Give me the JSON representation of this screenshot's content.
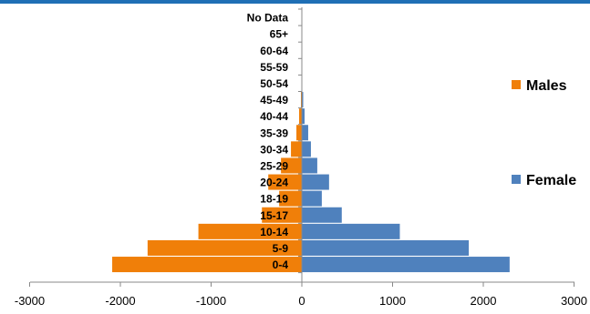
{
  "chart_data": {
    "type": "bar",
    "orientation": "horizontal",
    "title": "",
    "xlabel": "",
    "ylabel": "",
    "categories": [
      "0-4",
      "5-9",
      "10-14",
      "15-17",
      "18-19",
      "20-24",
      "25-29",
      "30-34",
      "35-39",
      "40-44",
      "45-49",
      "50-54",
      "55-59",
      "60-64",
      "65+",
      "No Data"
    ],
    "series": [
      {
        "name": "Males",
        "color": "#f07f09",
        "values": [
          -2090,
          -1700,
          -1140,
          -440,
          -250,
          -370,
          -230,
          -120,
          -60,
          -30,
          -10,
          -3,
          -2,
          -1,
          0,
          0
        ]
      },
      {
        "name": "Female",
        "color": "#4f81bd",
        "values": [
          2290,
          1840,
          1080,
          440,
          220,
          300,
          170,
          100,
          70,
          30,
          15,
          5,
          3,
          2,
          1,
          0
        ]
      }
    ],
    "xlim": [
      -3000,
      3000
    ],
    "x_ticks": [
      "-3000",
      "-2000",
      "-1000",
      "0",
      "1000",
      "2000",
      "3000"
    ],
    "grid": false,
    "legend_position": "right"
  }
}
